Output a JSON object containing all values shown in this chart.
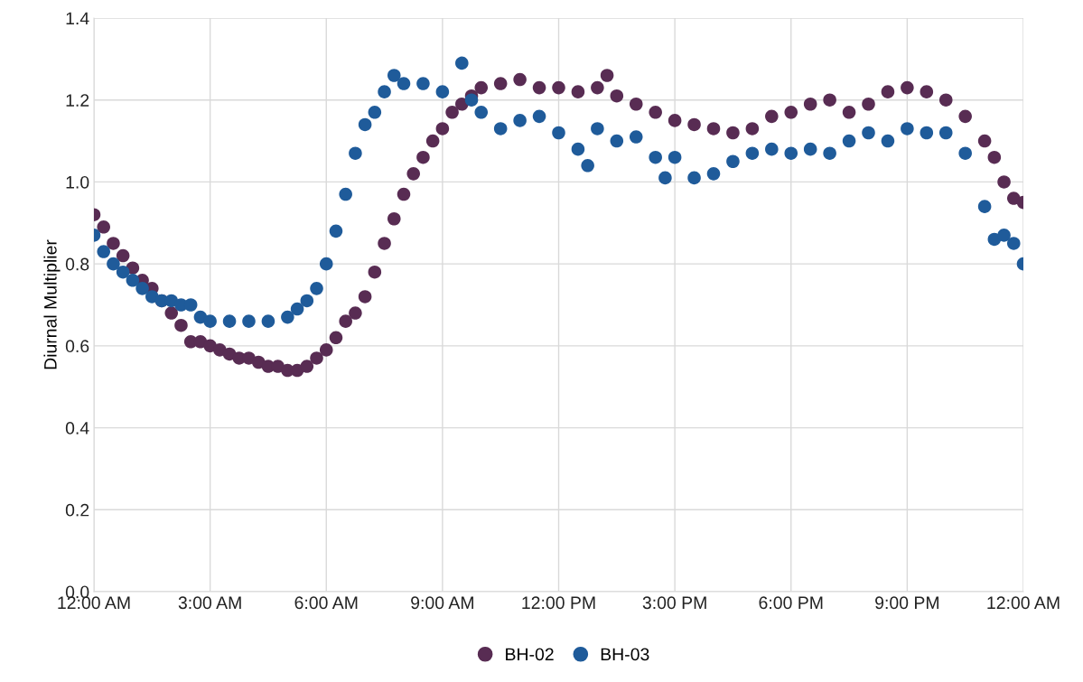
{
  "chart_data": {
    "type": "scatter",
    "ylabel": "Diurnal Multiplier",
    "xlim": [
      0,
      24
    ],
    "xticks": [
      {
        "value": 0,
        "label": "12:00 AM"
      },
      {
        "value": 3,
        "label": "3:00 AM"
      },
      {
        "value": 6,
        "label": "6:00 AM"
      },
      {
        "value": 9,
        "label": "9:00 AM"
      },
      {
        "value": 12,
        "label": "12:00 PM"
      },
      {
        "value": 15,
        "label": "3:00 PM"
      },
      {
        "value": 18,
        "label": "6:00 PM"
      },
      {
        "value": 21,
        "label": "9:00 PM"
      },
      {
        "value": 24,
        "label": "12:00 AM"
      }
    ],
    "ylim": [
      0,
      1.4
    ],
    "yticks": [
      {
        "value": 0,
        "label": "0.0"
      },
      {
        "value": 0.2,
        "label": "0.2"
      },
      {
        "value": 0.4,
        "label": "0.4"
      },
      {
        "value": 0.6,
        "label": "0.6"
      },
      {
        "value": 0.8,
        "label": "0.8"
      },
      {
        "value": 1.0,
        "label": "1.0"
      },
      {
        "value": 1.2,
        "label": "1.2"
      },
      {
        "value": 1.4,
        "label": "1.4"
      }
    ],
    "grid": true,
    "legend": "bottom",
    "marker": "circle",
    "series": [
      {
        "name": "BH-02",
        "color": "#582c53",
        "x": [
          0,
          0.25,
          0.5,
          0.75,
          1,
          1.25,
          1.5,
          1.75,
          2,
          2.25,
          2.5,
          2.75,
          3,
          3.25,
          3.5,
          3.75,
          4,
          4.25,
          4.5,
          4.75,
          5,
          5.25,
          5.5,
          5.75,
          6,
          6.25,
          6.5,
          6.75,
          7,
          7.25,
          7.5,
          7.75,
          8,
          8.25,
          8.5,
          8.75,
          9,
          9.25,
          9.5,
          9.75,
          10,
          10.5,
          11,
          11.5,
          12,
          12.5,
          13,
          13.25,
          13.5,
          14,
          14.5,
          15,
          15.5,
          16,
          16.5,
          17,
          17.5,
          18,
          18.5,
          19,
          19.5,
          20,
          20.5,
          21,
          21.5,
          22,
          22.5,
          23,
          23.25,
          23.5,
          23.75,
          24
        ],
        "values": [
          0.92,
          0.89,
          0.85,
          0.82,
          0.79,
          0.76,
          0.74,
          0.71,
          0.68,
          0.65,
          0.61,
          0.61,
          0.6,
          0.59,
          0.58,
          0.57,
          0.57,
          0.56,
          0.55,
          0.55,
          0.54,
          0.54,
          0.55,
          0.57,
          0.59,
          0.62,
          0.66,
          0.68,
          0.72,
          0.78,
          0.85,
          0.91,
          0.97,
          1.02,
          1.06,
          1.1,
          1.13,
          1.17,
          1.19,
          1.21,
          1.23,
          1.24,
          1.25,
          1.23,
          1.23,
          1.22,
          1.23,
          1.26,
          1.21,
          1.19,
          1.17,
          1.15,
          1.14,
          1.13,
          1.12,
          1.13,
          1.16,
          1.17,
          1.19,
          1.2,
          1.17,
          1.19,
          1.22,
          1.23,
          1.22,
          1.2,
          1.16,
          1.1,
          1.06,
          1.0,
          0.96,
          0.95
        ]
      },
      {
        "name": "BH-03",
        "color": "#1f5b9a",
        "x": [
          0,
          0.25,
          0.5,
          0.75,
          1,
          1.25,
          1.5,
          1.75,
          2,
          2.25,
          2.5,
          2.75,
          3,
          3.5,
          4,
          4.5,
          5,
          5.25,
          5.5,
          5.75,
          6,
          6.25,
          6.5,
          6.75,
          7,
          7.25,
          7.5,
          7.75,
          8,
          8.5,
          9,
          9.5,
          9.75,
          10,
          10.5,
          11,
          11.5,
          12,
          12.5,
          12.75,
          13,
          13.5,
          14,
          14.5,
          14.75,
          15,
          15.5,
          16,
          16.5,
          17,
          17.5,
          18,
          18.5,
          19,
          19.5,
          20,
          20.5,
          21,
          21.5,
          22,
          22.5,
          23,
          23.25,
          23.5,
          23.75,
          24
        ],
        "values": [
          0.87,
          0.83,
          0.8,
          0.78,
          0.76,
          0.74,
          0.72,
          0.71,
          0.71,
          0.7,
          0.7,
          0.67,
          0.66,
          0.66,
          0.66,
          0.66,
          0.67,
          0.69,
          0.71,
          0.74,
          0.8,
          0.88,
          0.97,
          1.07,
          1.14,
          1.17,
          1.22,
          1.26,
          1.24,
          1.24,
          1.22,
          1.29,
          1.2,
          1.17,
          1.13,
          1.15,
          1.16,
          1.12,
          1.08,
          1.04,
          1.13,
          1.1,
          1.11,
          1.06,
          1.01,
          1.06,
          1.01,
          1.02,
          1.05,
          1.07,
          1.08,
          1.07,
          1.08,
          1.07,
          1.1,
          1.12,
          1.1,
          1.13,
          1.12,
          1.12,
          1.07,
          0.94,
          0.86,
          0.87,
          0.85,
          0.8
        ]
      }
    ]
  }
}
